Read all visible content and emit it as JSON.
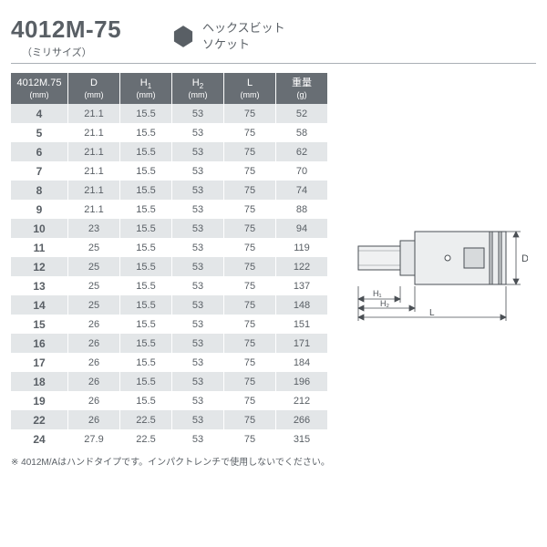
{
  "header": {
    "model_number": "4012M-75",
    "model_subtitle": "（ミリサイズ）",
    "product_title_line1": "ヘックスビット",
    "product_title_line2": "ソケット",
    "hex_icon": {
      "fill": "#595f65"
    }
  },
  "table": {
    "columns": [
      {
        "label": "4012M.75",
        "unit": "(mm)",
        "width_class": "col-size"
      },
      {
        "label": "D",
        "unit": "(mm)",
        "width_class": "col-d"
      },
      {
        "label": "H",
        "sub": "1",
        "unit": "(mm)",
        "width_class": "col-h1"
      },
      {
        "label": "H",
        "sub": "2",
        "unit": "(mm)",
        "width_class": "col-h2"
      },
      {
        "label": "L",
        "unit": "(mm)",
        "width_class": "col-l"
      },
      {
        "label": "重量",
        "unit": "(g)",
        "width_class": "col-w"
      }
    ],
    "rows": [
      [
        "4",
        "21.1",
        "15.5",
        "53",
        "75",
        "52"
      ],
      [
        "5",
        "21.1",
        "15.5",
        "53",
        "75",
        "58"
      ],
      [
        "6",
        "21.1",
        "15.5",
        "53",
        "75",
        "62"
      ],
      [
        "7",
        "21.1",
        "15.5",
        "53",
        "75",
        "70"
      ],
      [
        "8",
        "21.1",
        "15.5",
        "53",
        "75",
        "74"
      ],
      [
        "9",
        "21.1",
        "15.5",
        "53",
        "75",
        "88"
      ],
      [
        "10",
        "23",
        "15.5",
        "53",
        "75",
        "94"
      ],
      [
        "11",
        "25",
        "15.5",
        "53",
        "75",
        "119"
      ],
      [
        "12",
        "25",
        "15.5",
        "53",
        "75",
        "122"
      ],
      [
        "13",
        "25",
        "15.5",
        "53",
        "75",
        "137"
      ],
      [
        "14",
        "25",
        "15.5",
        "53",
        "75",
        "148"
      ],
      [
        "15",
        "26",
        "15.5",
        "53",
        "75",
        "151"
      ],
      [
        "16",
        "26",
        "15.5",
        "53",
        "75",
        "171"
      ],
      [
        "17",
        "26",
        "15.5",
        "53",
        "75",
        "184"
      ],
      [
        "18",
        "26",
        "15.5",
        "53",
        "75",
        "196"
      ],
      [
        "19",
        "26",
        "15.5",
        "53",
        "75",
        "212"
      ],
      [
        "22",
        "26",
        "22.5",
        "53",
        "75",
        "266"
      ],
      [
        "24",
        "27.9",
        "22.5",
        "53",
        "75",
        "315"
      ]
    ],
    "row_stripe_colors": {
      "even": "#e3e6e8",
      "odd": "#ffffff"
    },
    "header_bg": "#686e74",
    "header_fg": "#ffffff",
    "text_color": "#595f65"
  },
  "diagram": {
    "stroke": "#4a4f54",
    "fill_light": "#f2f3f4",
    "fill_mid": "#d7dadc",
    "labels": {
      "D": "D",
      "H1": "H₁",
      "H2": "H₂",
      "L": "L"
    }
  },
  "footnote": "※ 4012M/Aはハンドタイプです。インパクトレンチで使用しないでください。"
}
